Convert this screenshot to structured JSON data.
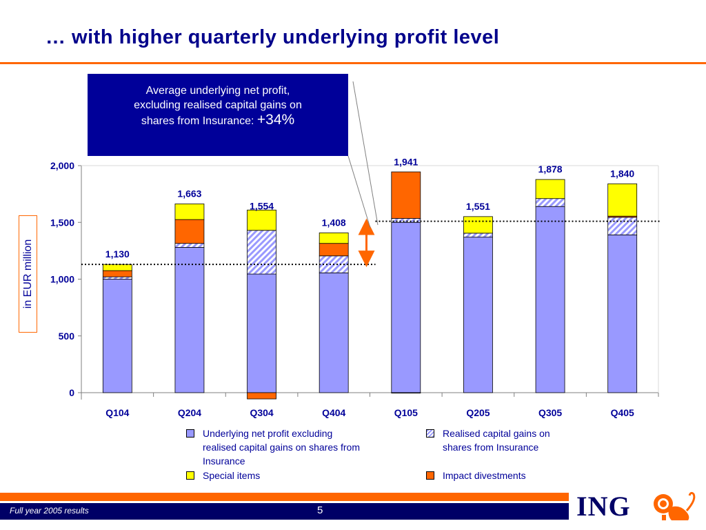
{
  "slide": {
    "title": "… with higher quarterly underlying profit level",
    "footer_left": "Full year 2005 results",
    "page_number": "5",
    "brand": "ING"
  },
  "callout": {
    "line1": "Average underlying net profit,",
    "line2": "excluding realised capital gains on",
    "line3_text": "shares from Insurance: ",
    "line3_value": "+34%"
  },
  "colors": {
    "underlying": "#9999FF",
    "realised": "#B0B8F0",
    "divestments": "#FF6600",
    "special": "#FFFF00",
    "navy": "#000099",
    "orange": "#FF6600"
  },
  "icons": {
    "logo": "lion-icon"
  },
  "chart_data": {
    "type": "bar",
    "stacked": true,
    "ylabel": "in EUR million",
    "ylim": [
      0,
      2000
    ],
    "yticks": [
      0,
      500,
      1000,
      1500,
      2000
    ],
    "ytick_labels": [
      "0",
      "500",
      "1,000",
      "1,500",
      "2,000"
    ],
    "categories": [
      "Q104",
      "Q204",
      "Q304",
      "Q404",
      "Q105",
      "Q205",
      "Q305",
      "Q405"
    ],
    "series": [
      {
        "name": "Underlying net profit excluding realised capital gains on shares from Insurance",
        "key": "underlying",
        "pattern": "solid",
        "values": [
          1000,
          1280,
          1045,
          1055,
          1500,
          1370,
          1640,
          1390
        ]
      },
      {
        "name": "Realised capital gains on shares from Insurance",
        "key": "realised",
        "pattern": "hatched",
        "values": [
          20,
          35,
          385,
          150,
          35,
          35,
          70,
          155
        ]
      },
      {
        "name": "Impact divestments",
        "key": "divestments",
        "pattern": "solid",
        "values": [
          55,
          210,
          -55,
          110,
          410,
          0,
          0,
          10
        ]
      },
      {
        "name": "Special items",
        "key": "special",
        "pattern": "solid",
        "values": [
          55,
          138,
          179,
          93,
          -4,
          146,
          168,
          285
        ]
      }
    ],
    "totals": [
      1130,
      1663,
      1554,
      1408,
      1941,
      1551,
      1878,
      1840
    ],
    "total_labels": [
      "1,130",
      "1,663",
      "1,554",
      "1,408",
      "1,941",
      "1,551",
      "1,878",
      "1,840"
    ],
    "average_levels": [
      1130,
      1510
    ],
    "legend_position": "bottom"
  },
  "legend": {
    "items": [
      {
        "label_lines": [
          "Underlying net profit excluding",
          "realised capital gains on shares from",
          "Insurance"
        ],
        "key": "underlying"
      },
      {
        "label_lines": [
          "Realised capital gains on",
          "shares from Insurance"
        ],
        "key": "realised"
      },
      {
        "label_lines": [
          "Special items"
        ],
        "key": "special"
      },
      {
        "label_lines": [
          "Impact divestments"
        ],
        "key": "divestments"
      }
    ]
  }
}
